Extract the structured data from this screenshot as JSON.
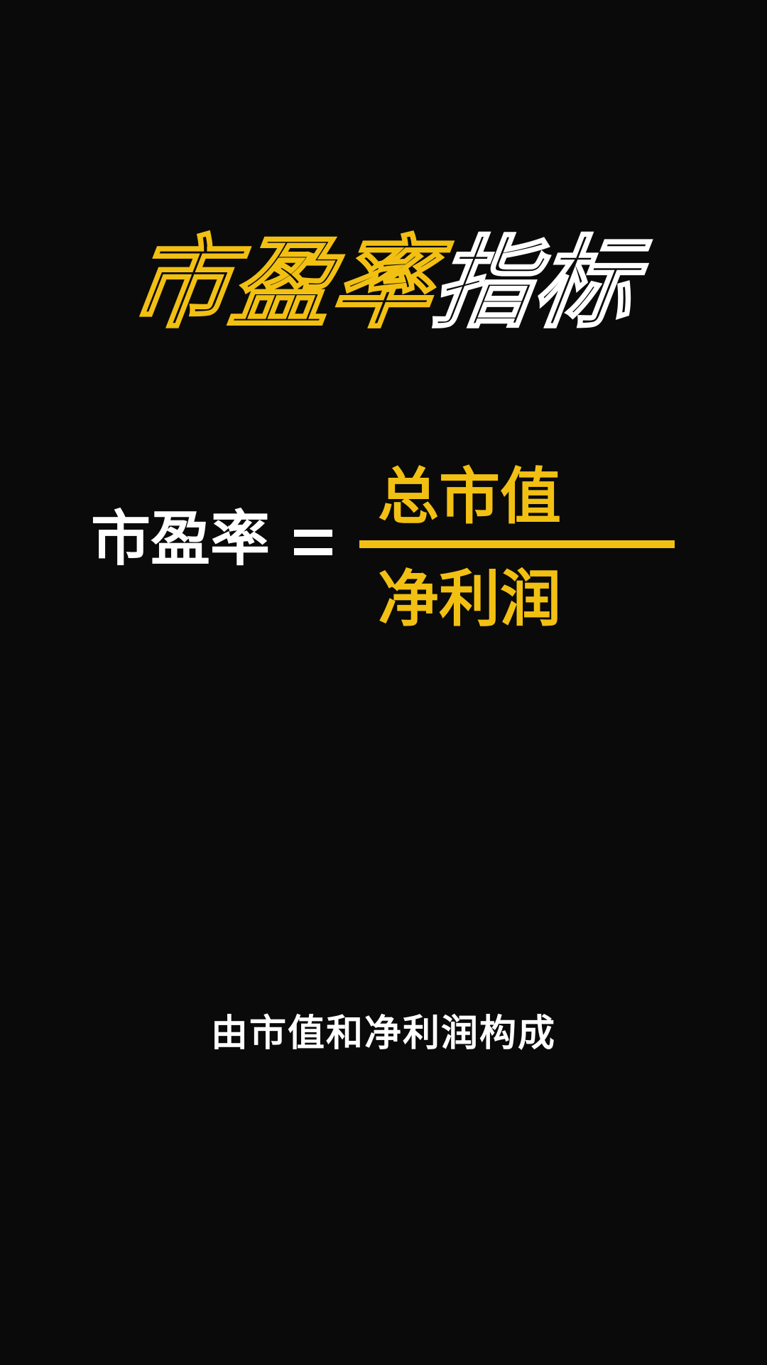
{
  "title": {
    "highlight": "市盈率",
    "rest": "指标"
  },
  "formula": {
    "lhs": "市盈率",
    "equals": "=",
    "numerator": "总市值",
    "denominator": "净利润"
  },
  "caption": "由市值和净利润构成",
  "colors": {
    "background": "#0a0a0a",
    "accent": "#f2c012",
    "text": "#ffffff"
  }
}
